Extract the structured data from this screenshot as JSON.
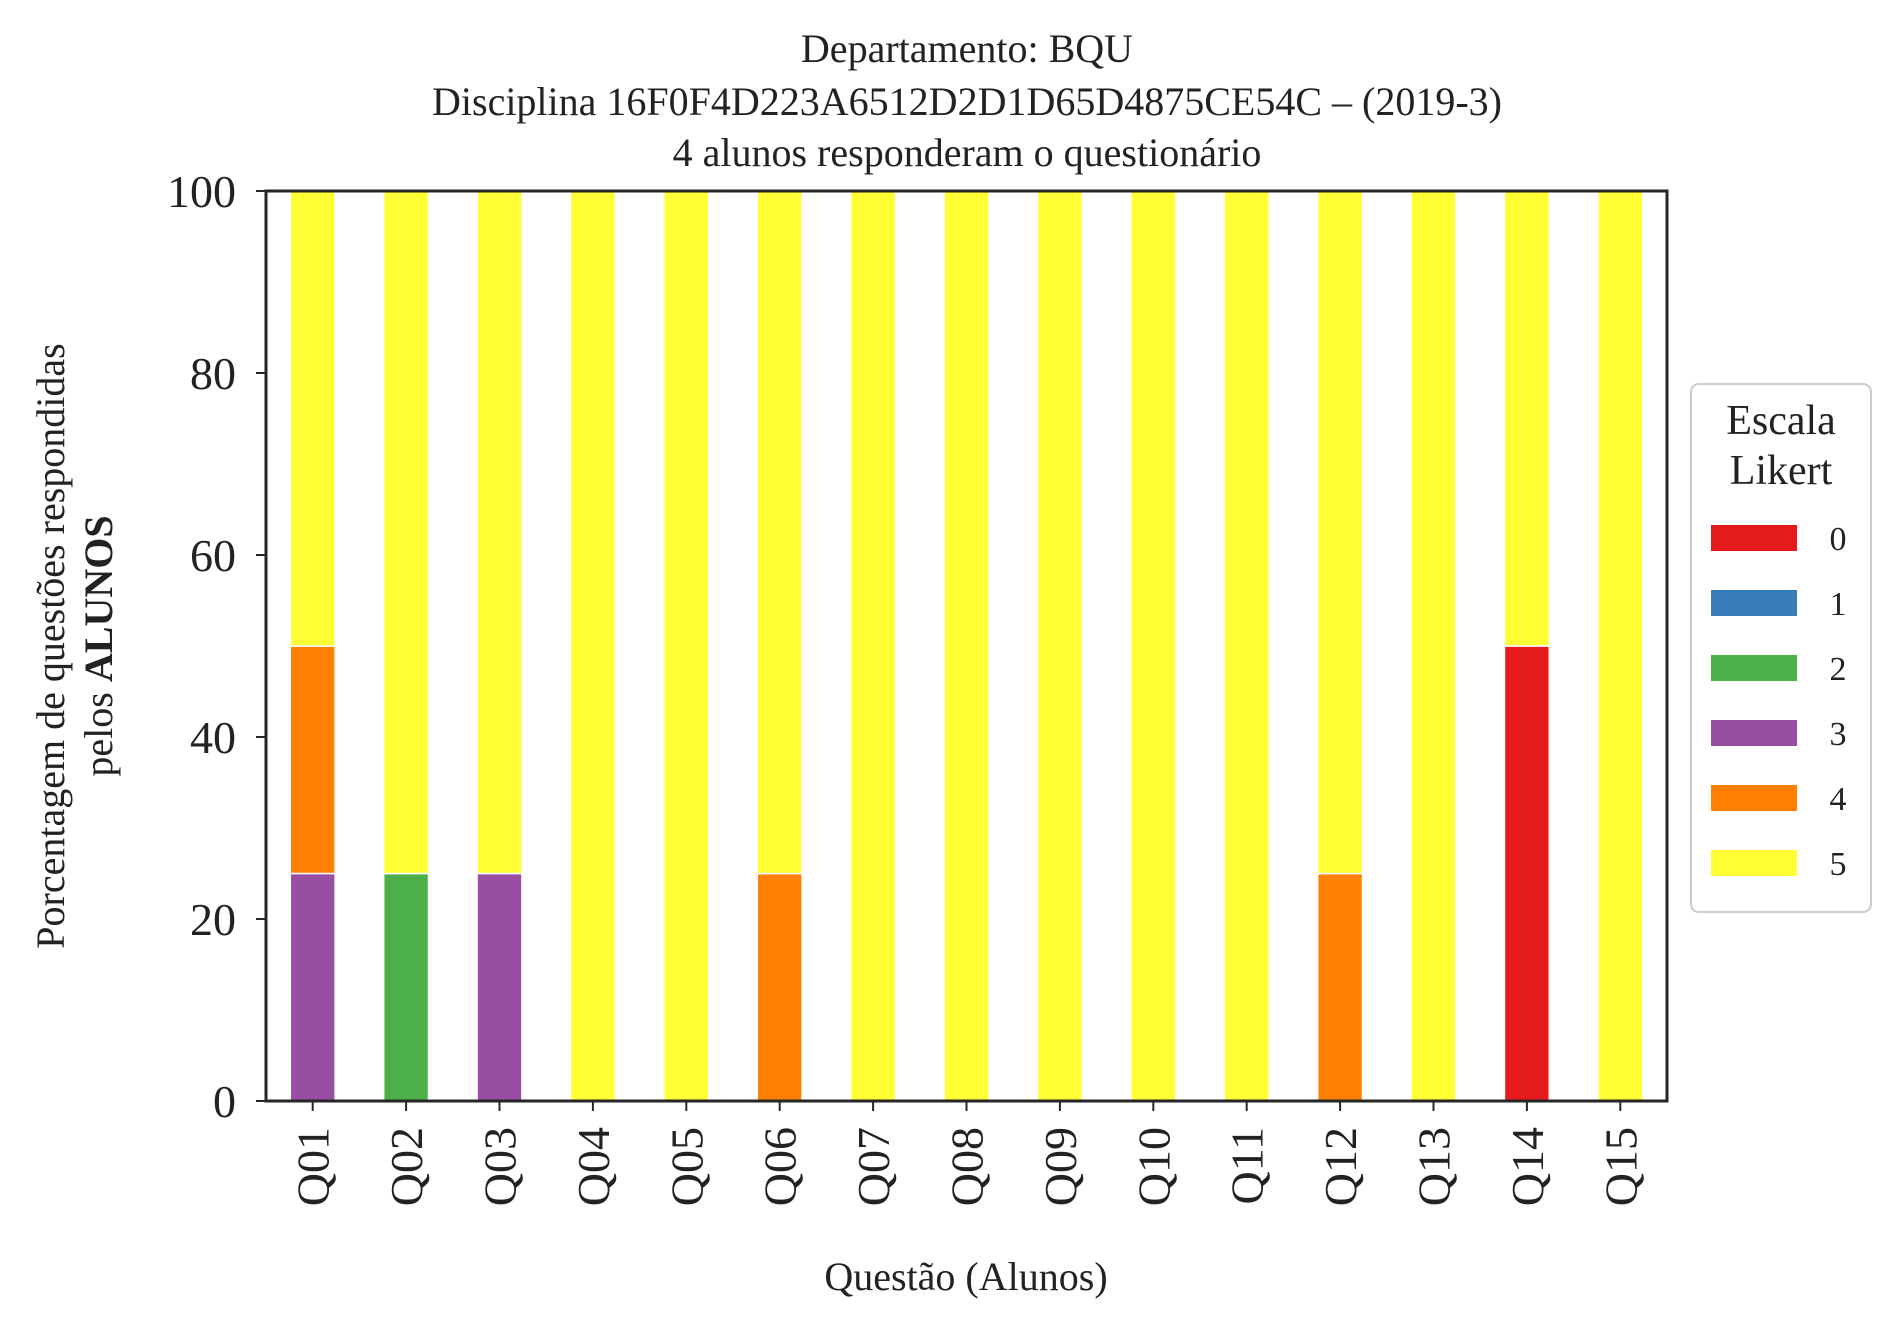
{
  "chart_data": {
    "type": "bar",
    "stacked": true,
    "title_lines": [
      "Departamento: BQU",
      "Disciplina 16F0F4D223A6512D2D1D65D4875CE54C – (2019-3)",
      "4 alunos responderam o questionário"
    ],
    "xlabel": "Questão (Alunos)",
    "ylabel_line1": "Porcentagem de questões respondidas",
    "ylabel_line2_prefix": "pelos ",
    "ylabel_line2_bold": "ALUNOS",
    "ylim": [
      0,
      100
    ],
    "yticks": [
      "0",
      "20",
      "40",
      "60",
      "80",
      "100"
    ],
    "categories": [
      "Q01",
      "Q02",
      "Q03",
      "Q04",
      "Q05",
      "Q06",
      "Q07",
      "Q08",
      "Q09",
      "Q10",
      "Q11",
      "Q12",
      "Q13",
      "Q14",
      "Q15"
    ],
    "legend": {
      "title_lines": [
        "Escala",
        "Likert"
      ],
      "placement": "right-center"
    },
    "series": [
      {
        "name": "0",
        "color": "#e41a1c",
        "values": [
          0,
          0,
          0,
          0,
          0,
          0,
          0,
          0,
          0,
          0,
          0,
          0,
          0,
          50,
          0
        ]
      },
      {
        "name": "1",
        "color": "#377eb8",
        "values": [
          0,
          0,
          0,
          0,
          0,
          0,
          0,
          0,
          0,
          0,
          0,
          0,
          0,
          0,
          0
        ]
      },
      {
        "name": "2",
        "color": "#4daf4a",
        "values": [
          0,
          25,
          0,
          0,
          0,
          0,
          0,
          0,
          0,
          0,
          0,
          0,
          0,
          0,
          0
        ]
      },
      {
        "name": "3",
        "color": "#984ea3",
        "values": [
          25,
          0,
          25,
          0,
          0,
          0,
          0,
          0,
          0,
          0,
          0,
          0,
          0,
          0,
          0
        ]
      },
      {
        "name": "4",
        "color": "#ff7f00",
        "values": [
          25,
          0,
          0,
          0,
          0,
          25,
          0,
          0,
          0,
          0,
          0,
          25,
          0,
          0,
          0
        ]
      },
      {
        "name": "5",
        "color": "#ffff33",
        "values": [
          50,
          75,
          75,
          100,
          100,
          75,
          100,
          100,
          100,
          100,
          100,
          75,
          100,
          50,
          100
        ]
      }
    ],
    "grid": false
  }
}
